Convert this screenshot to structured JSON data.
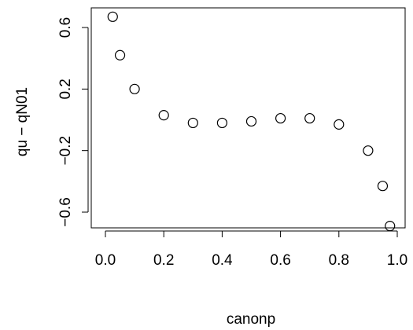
{
  "chart_data": {
    "type": "scatter",
    "title": "",
    "xlabel": "canonp",
    "ylabel": "qu − qN01",
    "xlim": [
      0.0,
      1.0
    ],
    "ylim": [
      -0.6,
      0.6
    ],
    "x_ticks": [
      "0.0",
      "0.2",
      "0.4",
      "0.6",
      "0.8",
      "1.0"
    ],
    "y_ticks": [
      "−0.6",
      "−0.2",
      "0.2",
      "0.6"
    ],
    "marker": "open-circle",
    "grid": false,
    "series": [
      {
        "x": [
          0.025,
          0.05,
          0.1,
          0.2,
          0.3,
          0.4,
          0.5,
          0.6,
          0.7,
          0.8,
          0.9,
          0.95,
          0.975
        ],
        "y": [
          0.67,
          0.42,
          0.2,
          0.03,
          -0.02,
          -0.02,
          -0.01,
          0.01,
          0.01,
          -0.03,
          -0.2,
          -0.43,
          -0.69
        ]
      }
    ]
  }
}
